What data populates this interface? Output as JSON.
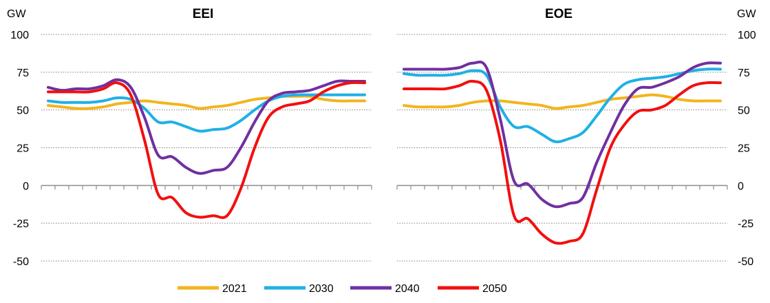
{
  "units": {
    "left": "GW",
    "right": "GW"
  },
  "colors": {
    "2021": "#F2B51E",
    "2030": "#1FB0E6",
    "2040": "#7030A0",
    "2050": "#F20F0F"
  },
  "legend": [
    {
      "key": "2021",
      "label": "2021"
    },
    {
      "key": "2030",
      "label": "2030"
    },
    {
      "key": "2040",
      "label": "2040"
    },
    {
      "key": "2050",
      "label": "2050"
    }
  ],
  "chart_data": [
    {
      "type": "line",
      "title": "EEI",
      "ylabel": "GW",
      "ylim": [
        -50,
        100
      ],
      "yticks": [
        100,
        75,
        50,
        25,
        0,
        -25,
        -50
      ],
      "grid": true,
      "x": [
        1,
        2,
        3,
        4,
        5,
        6,
        7,
        8,
        9,
        10,
        11,
        12,
        13,
        14,
        15,
        16,
        17,
        18,
        19,
        20,
        21,
        22,
        23,
        24
      ],
      "series": [
        {
          "name": "2021",
          "values": [
            53,
            52,
            51,
            51,
            52,
            54,
            55,
            56,
            55,
            54,
            53,
            51,
            52,
            53,
            55,
            57,
            58,
            59,
            59,
            59,
            57,
            56,
            56,
            56
          ]
        },
        {
          "name": "2030",
          "values": [
            56,
            55,
            55,
            55,
            56,
            58,
            57,
            51,
            42,
            42,
            39,
            36,
            37,
            38,
            43,
            50,
            56,
            59,
            60,
            60,
            60,
            60,
            60,
            60
          ]
        },
        {
          "name": "2040",
          "values": [
            65,
            63,
            64,
            64,
            66,
            70,
            65,
            45,
            20,
            19,
            12,
            8,
            10,
            12,
            25,
            42,
            56,
            61,
            62,
            63,
            66,
            69,
            69,
            69
          ]
        },
        {
          "name": "2050",
          "values": [
            62,
            62,
            62,
            62,
            64,
            68,
            60,
            30,
            -6,
            -8,
            -18,
            -21,
            -20,
            -20,
            -2,
            25,
            45,
            52,
            54,
            56,
            62,
            66,
            68,
            68
          ]
        }
      ]
    },
    {
      "type": "line",
      "title": "EOE",
      "ylabel": "GW",
      "ylim": [
        -50,
        100
      ],
      "yticks": [
        100,
        75,
        50,
        25,
        0,
        -25,
        -50
      ],
      "grid": true,
      "x": [
        1,
        2,
        3,
        4,
        5,
        6,
        7,
        8,
        9,
        10,
        11,
        12,
        13,
        14,
        15,
        16,
        17,
        18,
        19,
        20,
        21,
        22,
        23,
        24
      ],
      "series": [
        {
          "name": "2021",
          "values": [
            53,
            52,
            52,
            52,
            53,
            55,
            56,
            56,
            55,
            54,
            53,
            51,
            52,
            53,
            55,
            57,
            58,
            59,
            60,
            59,
            57,
            56,
            56,
            56
          ]
        },
        {
          "name": "2030",
          "values": [
            74,
            73,
            73,
            73,
            74,
            76,
            73,
            52,
            39,
            39,
            34,
            29,
            31,
            35,
            46,
            58,
            67,
            70,
            71,
            72,
            74,
            76,
            77,
            77
          ]
        },
        {
          "name": "2040",
          "values": [
            77,
            77,
            77,
            77,
            78,
            81,
            78,
            44,
            3,
            1,
            -9,
            -14,
            -12,
            -8,
            15,
            35,
            53,
            64,
            65,
            68,
            72,
            78,
            81,
            81
          ]
        },
        {
          "name": "2050",
          "values": [
            64,
            64,
            64,
            64,
            66,
            69,
            63,
            30,
            -20,
            -22,
            -32,
            -38,
            -37,
            -32,
            -3,
            25,
            40,
            49,
            50,
            53,
            60,
            66,
            68,
            68
          ]
        }
      ]
    }
  ]
}
